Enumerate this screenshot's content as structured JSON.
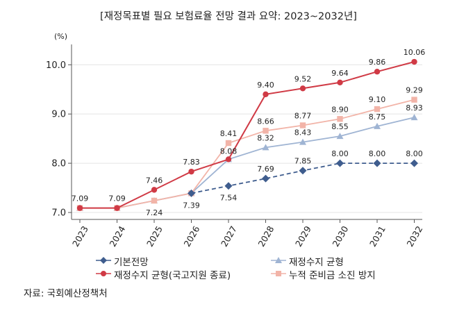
{
  "title": "[재정목표별 필요 보험료율 전망 결과 요약: 2023~2032년]",
  "source": "자료: 국회예산정책처",
  "colors": {
    "baseline": "#3f5d8e",
    "balance": "#d03a45",
    "cumulative": "#f2b4a8",
    "fiscal": "#9fb4d3",
    "axis": "#555555",
    "grid": "#e4e4e4"
  },
  "chart_data": {
    "type": "line",
    "title": "[재정목표별 필요 보험료율 전망 결과 요약: 2023~2032년]",
    "y_unit": "(%)",
    "ylim": [
      7.0,
      10.3
    ],
    "yticks": [
      "7.0",
      "8.0",
      "9.0",
      "10.0"
    ],
    "categories": [
      "2023",
      "2024",
      "2025",
      "2026",
      "2027",
      "2028",
      "2029",
      "2030",
      "2031",
      "2032"
    ],
    "legend_position": "bottom",
    "series": [
      {
        "name": "기본전망",
        "key": "baseline",
        "marker": "diamond",
        "dash": "dashed-from-2026",
        "values": [
          null,
          null,
          null,
          7.39,
          7.54,
          7.69,
          7.85,
          8.0,
          8.0,
          8.0
        ],
        "labels": [
          "",
          "",
          "",
          "",
          "7.54",
          "7.69",
          "7.85",
          "8.00",
          "8.00",
          "8.00"
        ]
      },
      {
        "name": "재정수지 균형(국고지원 종료)",
        "key": "balance",
        "marker": "circle",
        "values": [
          7.09,
          7.09,
          7.46,
          7.83,
          8.08,
          9.4,
          9.52,
          9.64,
          9.86,
          10.06
        ],
        "labels": [
          "7.09",
          "7.09",
          "7.46",
          "7.83",
          "8.08",
          "9.40",
          "9.52",
          "9.64",
          "9.86",
          "10.06"
        ]
      },
      {
        "name": "재정수지 균형",
        "key": "fiscal",
        "marker": "triangle",
        "values": [
          7.09,
          7.09,
          7.24,
          7.39,
          8.08,
          8.32,
          8.43,
          8.55,
          8.75,
          8.93
        ],
        "labels": [
          "",
          "",
          "7.24",
          "7.39",
          "",
          "8.32",
          "8.43",
          "8.55",
          "8.75",
          "8.93"
        ]
      },
      {
        "name": "누적 준비금 소진 방지",
        "key": "cumulative",
        "marker": "square",
        "values": [
          7.09,
          7.09,
          7.24,
          7.39,
          8.41,
          8.66,
          8.77,
          8.9,
          9.1,
          9.29
        ],
        "labels": [
          "",
          "",
          "",
          "",
          "8.41",
          "8.66",
          "8.77",
          "8.90",
          "9.10",
          "9.29"
        ]
      }
    ]
  }
}
